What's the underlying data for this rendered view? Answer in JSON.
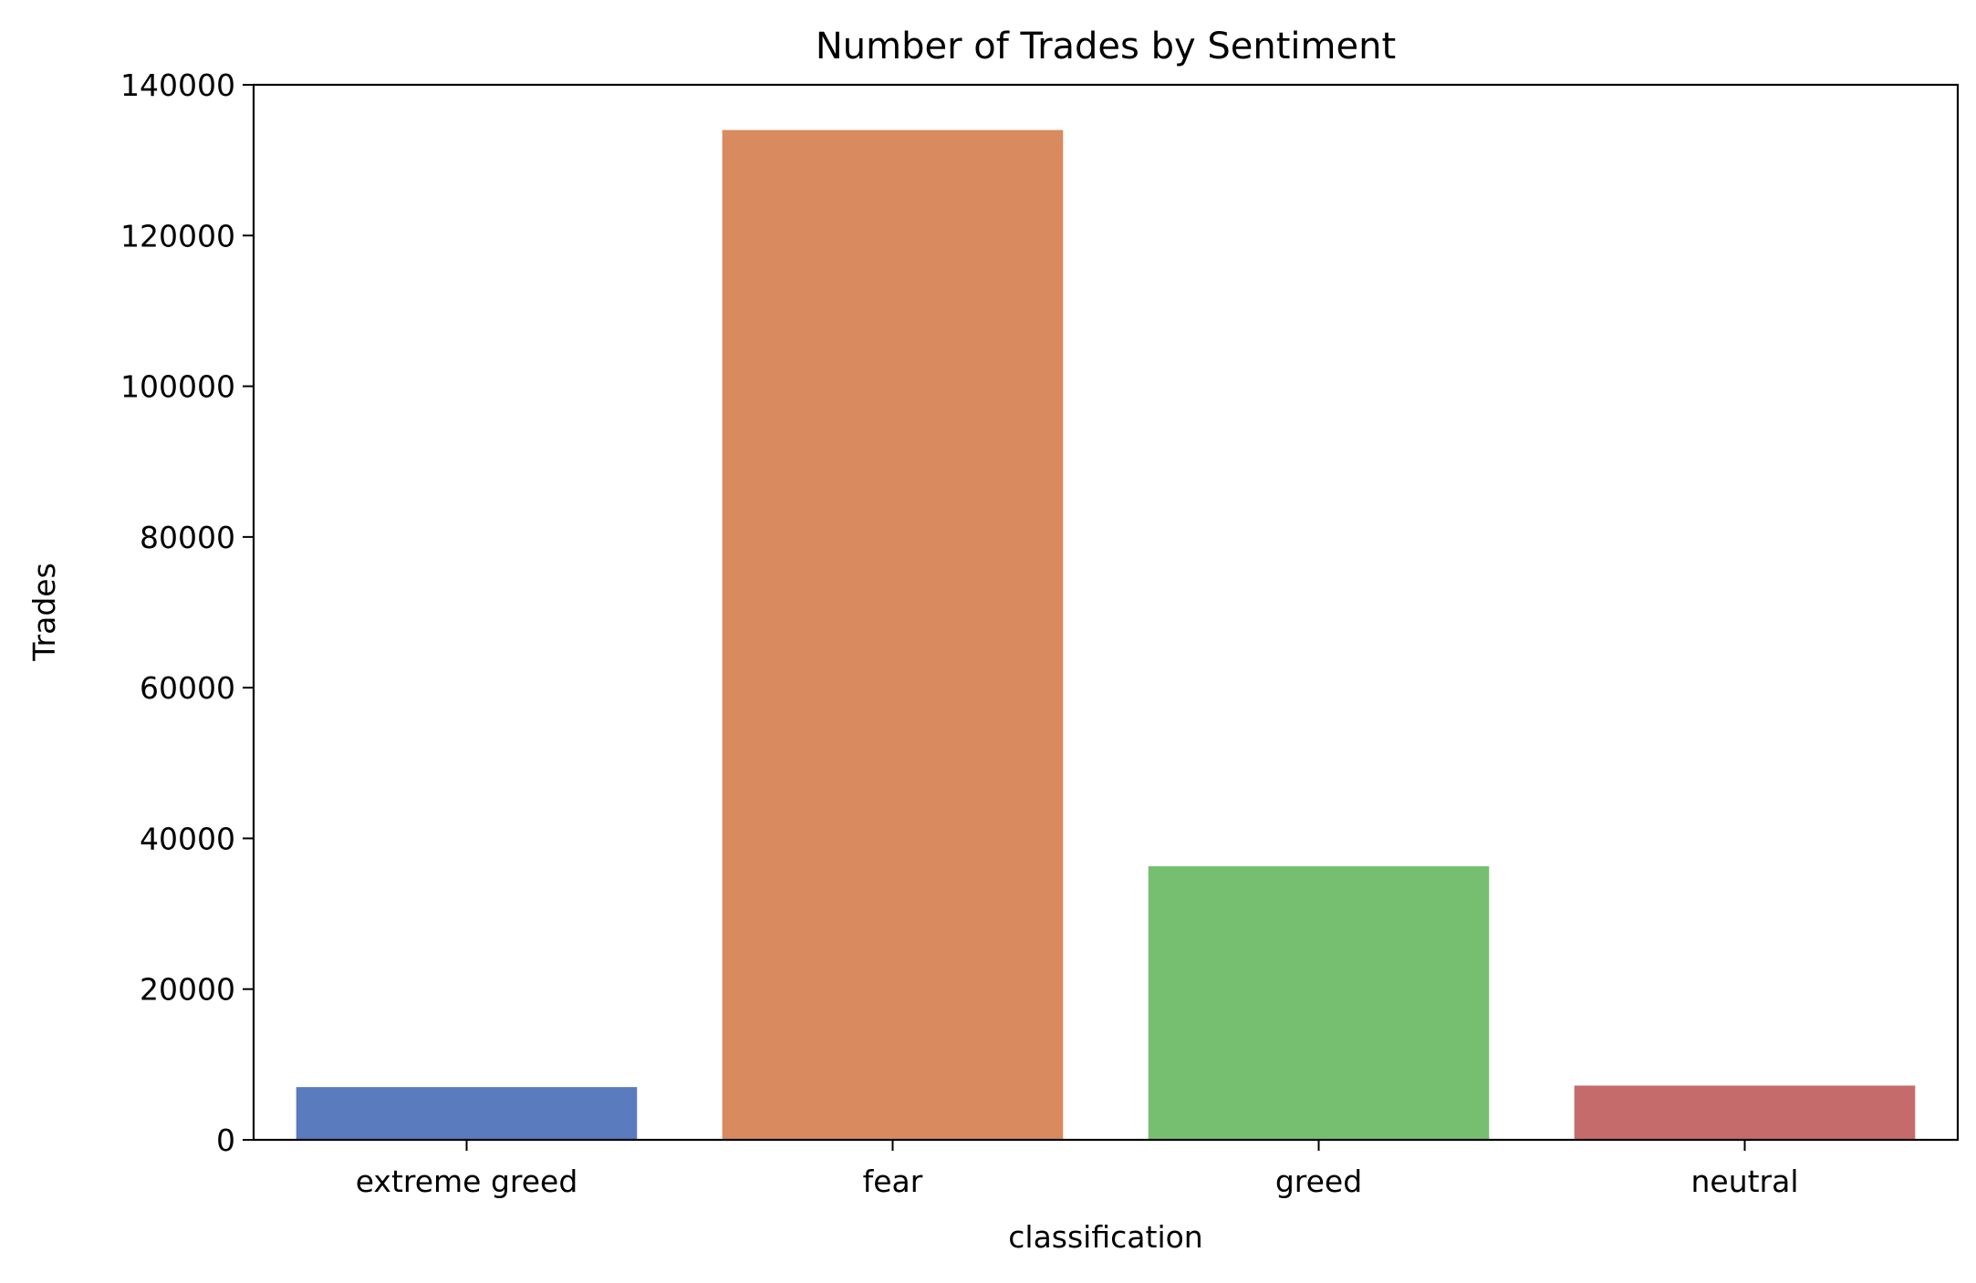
{
  "chart_data": {
    "type": "bar",
    "title": "Number of Trades by Sentiment",
    "xlabel": "classification",
    "ylabel": "Trades",
    "categories": [
      "extreme greed",
      "fear",
      "greed",
      "neutral"
    ],
    "values": [
      7000,
      134000,
      36300,
      7200
    ],
    "colors": [
      "#5b7bbf",
      "#d98a5f",
      "#76bf70",
      "#c66b6b"
    ],
    "ylim": [
      0,
      140000
    ],
    "yticks": [
      0,
      20000,
      40000,
      60000,
      80000,
      100000,
      120000,
      140000
    ],
    "ytick_labels": [
      "0",
      "20000",
      "40000",
      "60000",
      "80000",
      "100000",
      "120000",
      "140000"
    ],
    "grid": false,
    "legend": "none"
  }
}
